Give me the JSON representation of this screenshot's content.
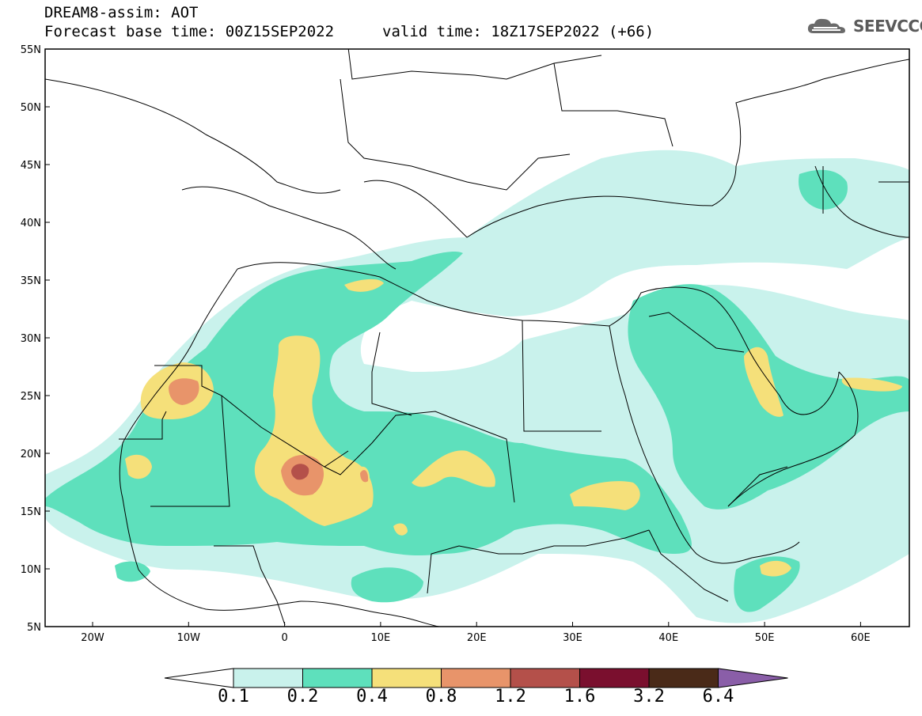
{
  "header": {
    "title_line1": "DREAM8-assim: AOT",
    "title_line2": "Forecast base time: 00Z15SEP2022",
    "valid_time": "valid time: 18Z17SEP2022 (+66)",
    "logo_text": "SEEVCCC",
    "logo_icon": "cloud-icon"
  },
  "map": {
    "lat_labels": [
      "55N",
      "50N",
      "45N",
      "40N",
      "35N",
      "30N",
      "25N",
      "20N",
      "15N",
      "10N",
      "5N"
    ],
    "lon_labels": [
      "20W",
      "10W",
      "0",
      "10E",
      "20E",
      "30E",
      "40E",
      "50E",
      "60E"
    ]
  },
  "legend": {
    "thresholds": [
      "0.1",
      "0.2",
      "0.4",
      "0.8",
      "1.2",
      "1.6",
      "3.2",
      "6.4"
    ],
    "colors": [
      "#c9f2ec",
      "#5ee0bc",
      "#f5e07a",
      "#e8946a",
      "#b4504a",
      "#7a0f2e",
      "#4a2a18"
    ],
    "under_color": "#ffffff",
    "over_color": "#8a5ea8"
  }
}
